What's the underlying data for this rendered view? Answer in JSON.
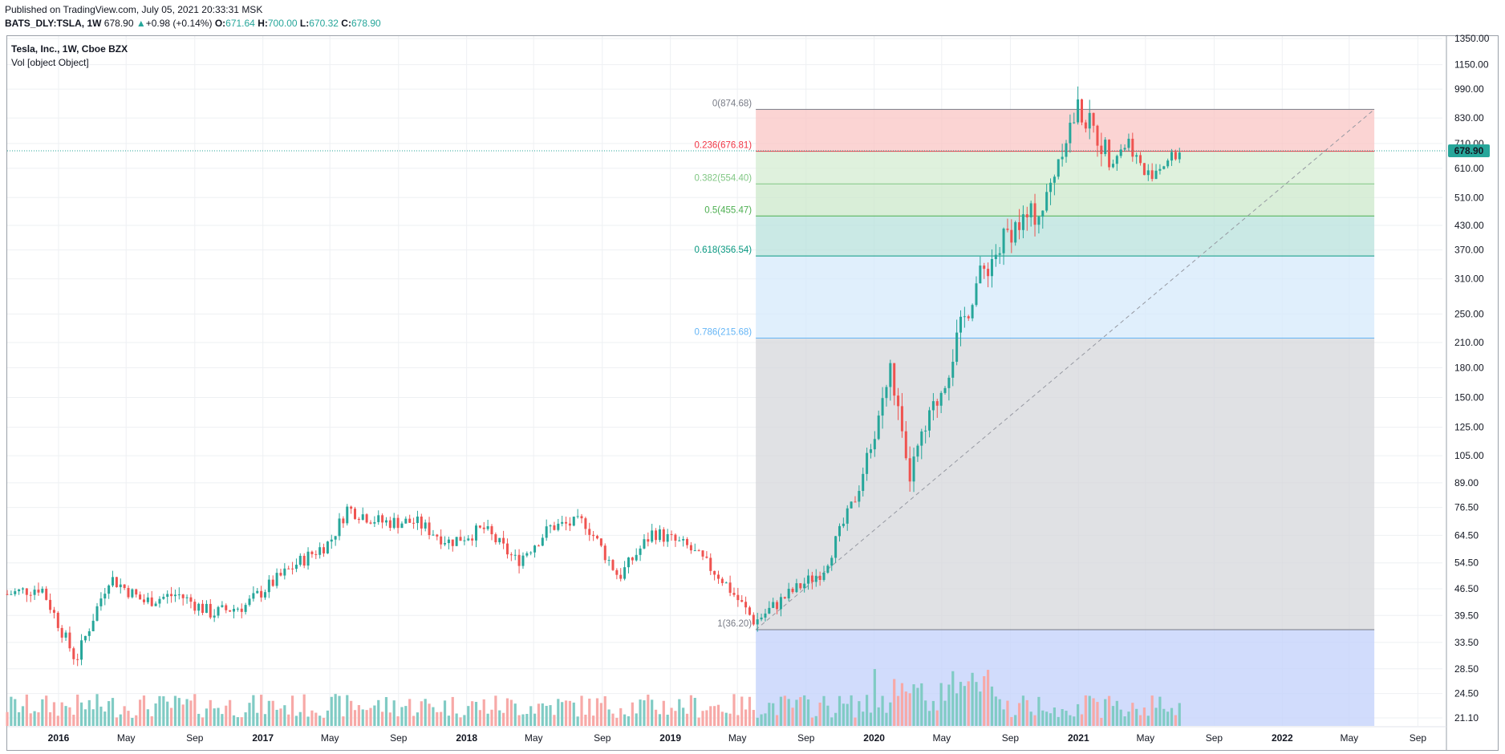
{
  "header": {
    "published": "Published on TradingView.com, July 05, 2021 20:33:31 MSK",
    "symbol": "BATS_DLY:TSLA, 1W",
    "last": "678.90",
    "change_arrow": "▲",
    "change": "+0.98 (+0.14%)",
    "open_label": "O:",
    "open": "671.64",
    "high_label": "H:",
    "high": "700.00",
    "low_label": "L:",
    "low": "670.32",
    "close_label": "C:",
    "close": "678.90"
  },
  "legend": {
    "title": "Tesla, Inc., 1W, Cboe BZX",
    "volume": "Vol [object Object]"
  },
  "price_tag": "678.90",
  "colors": {
    "up": "#26a69a",
    "down": "#ef5350",
    "up_vol": "#80cbc4",
    "down_vol": "#f7a9a7",
    "grid": "#eef0f3"
  },
  "chart_data": {
    "type": "candlestick",
    "scale": "log",
    "ylim": [
      20,
      1400
    ],
    "y_ticks": [
      "1350.00",
      "1150.00",
      "990.00",
      "830.00",
      "710.00",
      "610.00",
      "510.00",
      "430.00",
      "370.00",
      "310.00",
      "250.00",
      "210.00",
      "180.00",
      "150.00",
      "125.00",
      "105.00",
      "89.00",
      "76.50",
      "64.50",
      "54.50",
      "46.50",
      "39.50",
      "33.50",
      "28.50",
      "24.50",
      "21.10"
    ],
    "x_ticks": [
      {
        "label": "2016",
        "bold": true
      },
      {
        "label": "May",
        "bold": false
      },
      {
        "label": "Sep",
        "bold": false
      },
      {
        "label": "2017",
        "bold": true
      },
      {
        "label": "May",
        "bold": false
      },
      {
        "label": "Sep",
        "bold": false
      },
      {
        "label": "2018",
        "bold": true
      },
      {
        "label": "May",
        "bold": false
      },
      {
        "label": "Sep",
        "bold": false
      },
      {
        "label": "2019",
        "bold": true
      },
      {
        "label": "May",
        "bold": false
      },
      {
        "label": "Sep",
        "bold": false
      },
      {
        "label": "2020",
        "bold": true
      },
      {
        "label": "May",
        "bold": false
      },
      {
        "label": "Sep",
        "bold": false
      },
      {
        "label": "2021",
        "bold": true
      },
      {
        "label": "May",
        "bold": false
      },
      {
        "label": "Sep",
        "bold": false
      },
      {
        "label": "2022",
        "bold": true
      },
      {
        "label": "May",
        "bold": false
      },
      {
        "label": "Sep",
        "bold": false
      }
    ],
    "price_path": [
      {
        "date": "2015-10",
        "close": 45
      },
      {
        "date": "2015-12",
        "close": 47
      },
      {
        "date": "2016-02",
        "close": 30
      },
      {
        "date": "2016-04",
        "close": 50
      },
      {
        "date": "2016-06",
        "close": 43
      },
      {
        "date": "2016-08",
        "close": 45
      },
      {
        "date": "2016-10",
        "close": 40
      },
      {
        "date": "2016-12",
        "close": 42
      },
      {
        "date": "2017-01",
        "close": 46
      },
      {
        "date": "2017-03",
        "close": 54
      },
      {
        "date": "2017-05",
        "close": 62
      },
      {
        "date": "2017-06",
        "close": 76
      },
      {
        "date": "2017-08",
        "close": 70
      },
      {
        "date": "2017-10",
        "close": 70
      },
      {
        "date": "2017-12",
        "close": 62
      },
      {
        "date": "2018-02",
        "close": 67
      },
      {
        "date": "2018-04",
        "close": 55
      },
      {
        "date": "2018-06",
        "close": 68
      },
      {
        "date": "2018-08",
        "close": 70
      },
      {
        "date": "2018-10",
        "close": 50
      },
      {
        "date": "2018-12",
        "close": 66
      },
      {
        "date": "2019-02",
        "close": 60
      },
      {
        "date": "2019-04",
        "close": 50
      },
      {
        "date": "2019-06",
        "close": 38
      },
      {
        "date": "2019-08",
        "close": 45
      },
      {
        "date": "2019-10",
        "close": 52
      },
      {
        "date": "2019-12",
        "close": 83
      },
      {
        "date": "2020-02",
        "close": 180
      },
      {
        "date": "2020-03",
        "close": 90
      },
      {
        "date": "2020-05",
        "close": 160
      },
      {
        "date": "2020-07",
        "close": 300
      },
      {
        "date": "2020-09",
        "close": 420
      },
      {
        "date": "2020-11",
        "close": 480
      },
      {
        "date": "2020-12",
        "close": 700
      },
      {
        "date": "2021-01",
        "close": 880
      },
      {
        "date": "2021-03",
        "close": 650
      },
      {
        "date": "2021-04",
        "close": 720
      },
      {
        "date": "2021-05",
        "close": 580
      },
      {
        "date": "2021-07",
        "close": 678.9
      }
    ],
    "fib_levels": [
      {
        "ratio": "0",
        "label": "0(874.68)",
        "price": 874.68,
        "color": "#787b86"
      },
      {
        "ratio": "0.236",
        "label": "0.236(676.81)",
        "price": 676.81,
        "color": "#f23645"
      },
      {
        "ratio": "0.382",
        "label": "0.382(554.40)",
        "price": 554.4,
        "color": "#81c784"
      },
      {
        "ratio": "0.5",
        "label": "0.5(455.47)",
        "price": 455.47,
        "color": "#4caf50"
      },
      {
        "ratio": "0.618",
        "label": "0.618(356.54)",
        "price": 356.54,
        "color": "#089981"
      },
      {
        "ratio": "0.786",
        "label": "0.786(215.68)",
        "price": 215.68,
        "color": "#64b5f6"
      },
      {
        "ratio": "1",
        "label": "1(36.20)",
        "price": 36.2,
        "color": "#787b86"
      }
    ]
  }
}
